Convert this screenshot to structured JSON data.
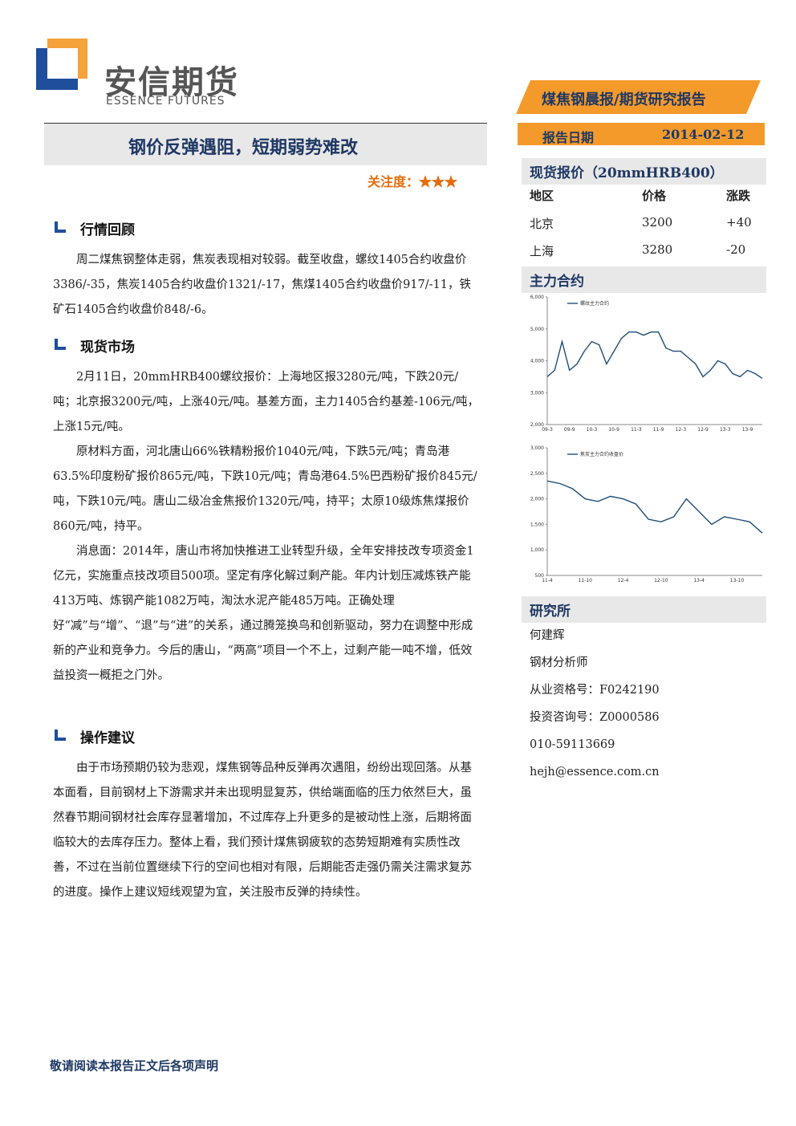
{
  "header": {
    "logo_cn": "安信期货",
    "logo_en": "ESSENCE FUTURES",
    "banner": "煤焦钢晨报/期货研究报告",
    "date_label": "报告日期",
    "date": "2014-02-12"
  },
  "title": "钢价反弹遇阻，短期弱势难改",
  "attention": {
    "label": "关注度：",
    "stars": "★★★"
  },
  "sections": [
    {
      "heading": "行情回顾",
      "paragraphs": [
        "周二煤焦钢整体走弱，焦炭表现相对较弱。截至收盘，螺纹1405合约收盘价3386/-35，焦炭1405合约收盘价1321/-17，焦煤1405合约收盘价917/-11，铁矿石1405合约收盘价848/-6。"
      ]
    },
    {
      "heading": "现货市场",
      "paragraphs": [
        "2月11日，20mmHRB400螺纹报价：上海地区报3280元/吨，下跌20元/吨；北京报3200元/吨，上涨40元/吨。基差方面，主力1405合约基差-106元/吨，上涨15元/吨。",
        "原材料方面，河北唐山66%铁精粉报价1040元/吨，下跌5元/吨；青岛港63.5%印度粉矿报价865元/吨，下跌10元/吨；青岛港64.5%巴西粉矿报价845元/吨，下跌10元/吨。唐山二级冶金焦报价1320元/吨，持平；太原10级炼焦煤报价860元/吨，持平。",
        "消息面：2014年，唐山市将加快推进工业转型升级，全年安排技改专项资金1亿元，实施重点技改项目500项。坚定有序化解过剩产能。年内计划压减炼铁产能413万吨、炼钢产能1082万吨，淘汰水泥产能485万吨。正确处理好“减”与“增”、“退”与“进”的关系，通过腾笼换鸟和创新驱动，努力在调整中形成新的产业和竞争力。今后的唐山，“两高”项目一个不上，过剩产能一吨不增，低效益投资一概拒之门外。"
      ]
    },
    {
      "heading": "操作建议",
      "paragraphs": [
        "由于市场预期仍较为悲观，煤焦钢等品种反弹再次遇阻，纷纷出现回落。从基本面看，目前钢材上下游需求并未出现明显复苏，供给端面临的压力依然巨大，虽然春节期间钢材社会库存显著增加，不过库存上升更多的是被动性上涨，后期将面临较大的去库存压力。整体上看，我们预计煤焦钢疲软的态势短期难有实质性改善，不过在当前位置继续下行的空间也相对有限，后期能否走强仍需关注需求复苏的进度。操作上建议短线观望为宜，关注股市反弹的持续性。"
      ]
    }
  ],
  "spot": {
    "heading": "现货报价（20mmHRB400）",
    "columns": [
      "地区",
      "价格",
      "涨跌"
    ],
    "rows": [
      [
        "北京",
        "3200",
        "+40"
      ],
      [
        "上海",
        "3280",
        "-20"
      ]
    ]
  },
  "main_contract": {
    "heading": "主力合约"
  },
  "chart_data": [
    {
      "type": "line",
      "series": [
        {
          "name": "螺纹主力合约",
          "color": "#1f4e79",
          "values": [
            3500,
            3700,
            4600,
            3700,
            3900,
            4300,
            4600,
            4500,
            3900,
            4300,
            4700,
            4900,
            4900,
            4800,
            4900,
            4900,
            4400,
            4300,
            4300,
            4100,
            3900,
            3500,
            3700,
            4000,
            3900,
            3600,
            3500,
            3700,
            3600,
            3450
          ]
        }
      ],
      "categories": [
        "09-3",
        null,
        null,
        "09-9",
        null,
        null,
        "10-3",
        null,
        null,
        "10-9",
        null,
        null,
        "11-3",
        null,
        null,
        "11-9",
        null,
        null,
        "12-3",
        null,
        null,
        "12-9",
        null,
        null,
        "13-3",
        null,
        null,
        "13-9",
        null,
        null
      ],
      "ylim": [
        2000,
        6000
      ],
      "yticks": [
        {
          "value": 2000,
          "label": "2,000"
        },
        {
          "value": 3000,
          "label": "3,000"
        },
        {
          "value": 4000,
          "label": "4,000"
        },
        {
          "value": 5000,
          "label": "5,000"
        },
        {
          "value": 6000,
          "label": "6,000"
        }
      ]
    },
    {
      "type": "line",
      "series": [
        {
          "name": "焦炭主力合约收盘价",
          "color": "#1f4e79",
          "values": [
            2350,
            2300,
            2200,
            2000,
            1950,
            2050,
            2000,
            1900,
            1600,
            1550,
            1650,
            2000,
            1750,
            1500,
            1650,
            1600,
            1550,
            1330
          ]
        }
      ],
      "categories": [
        "11-4",
        null,
        null,
        "11-10",
        null,
        null,
        "12-4",
        null,
        null,
        "12-10",
        null,
        null,
        "13-4",
        null,
        null,
        "13-10",
        null,
        null
      ],
      "ylim": [
        500,
        3000
      ],
      "yticks": [
        500,
        {
          "value": 1000,
          "label": "1,000"
        },
        {
          "value": 1500,
          "label": "1,500"
        },
        {
          "value": 2000,
          "label": "2,000"
        },
        {
          "value": 2500,
          "label": "2,500"
        },
        {
          "value": 3000,
          "label": "3,000"
        }
      ]
    }
  ],
  "research": {
    "heading": "研究所",
    "lines": [
      "何建辉",
      "钢材分析师",
      "从业资格号：F0242190",
      "投资咨询号：Z0000586",
      "010-59113669",
      "hejh@essence.com.cn"
    ]
  },
  "footer": "敬请阅读本报告正文后各项声明"
}
